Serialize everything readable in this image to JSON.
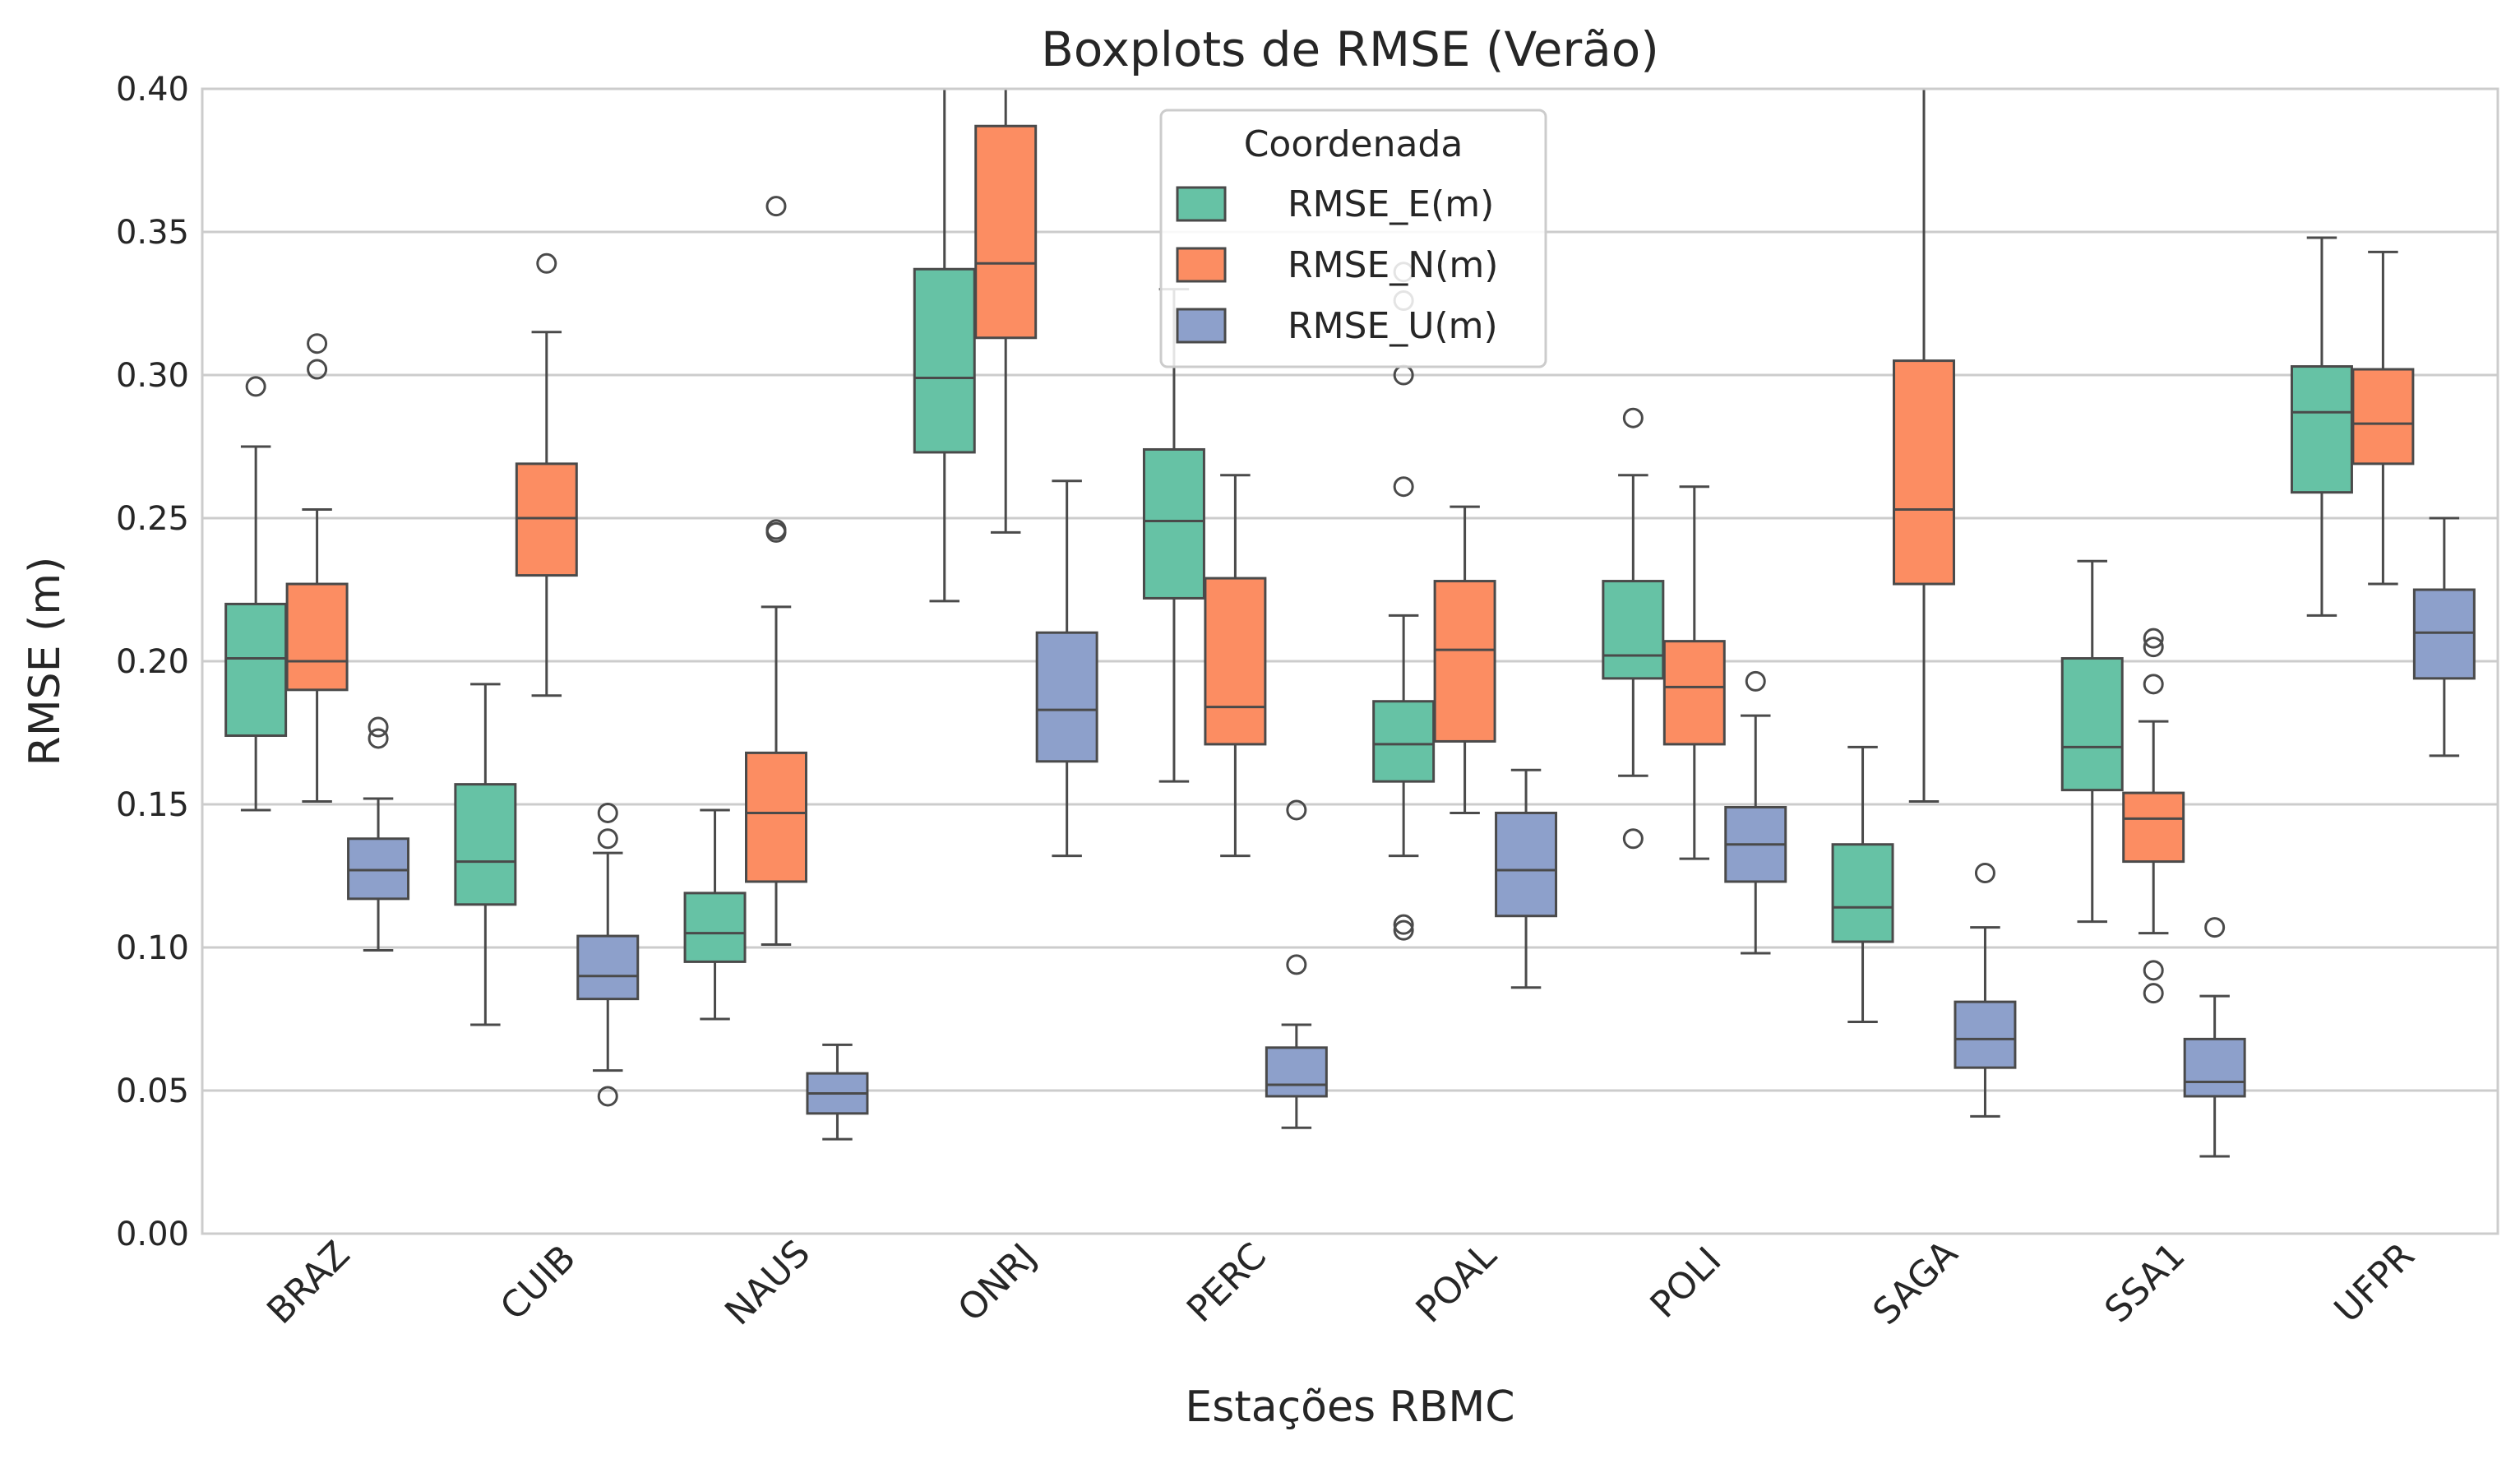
{
  "chart_data": {
    "type": "boxplot",
    "title": "Boxplots de RMSE (Verão)",
    "xlabel": "Estações RBMC",
    "ylabel": "RMSE (m)",
    "ylim": [
      0,
      0.4
    ],
    "yticks": [
      0.0,
      0.05,
      0.1,
      0.15,
      0.2,
      0.25,
      0.3,
      0.35,
      0.4
    ],
    "ytick_labels": [
      "0.00",
      "0.05",
      "0.10",
      "0.15",
      "0.20",
      "0.25",
      "0.30",
      "0.35",
      "0.40"
    ],
    "grid": true,
    "categories": [
      "BRAZ",
      "CUIB",
      "NAUS",
      "ONRJ",
      "PERC",
      "POAL",
      "POLI",
      "SAGA",
      "SSA1",
      "UFPR"
    ],
    "legend": {
      "title": "Coordenada",
      "position": "top-center"
    },
    "series": [
      {
        "name": "RMSE_E(m)",
        "color": "#66c2a5",
        "boxes": [
          {
            "whislo": 0.148,
            "q1": 0.174,
            "med": 0.201,
            "q3": 0.22,
            "whishi": 0.275,
            "fliers": [
              0.296
            ]
          },
          {
            "whislo": 0.073,
            "q1": 0.115,
            "med": 0.13,
            "q3": 0.157,
            "whishi": 0.192,
            "fliers": []
          },
          {
            "whislo": 0.075,
            "q1": 0.095,
            "med": 0.105,
            "q3": 0.119,
            "whishi": 0.148,
            "fliers": []
          },
          {
            "whislo": 0.221,
            "q1": 0.273,
            "med": 0.299,
            "q3": 0.337,
            "whishi": 0.43,
            "fliers": []
          },
          {
            "whislo": 0.158,
            "q1": 0.222,
            "med": 0.249,
            "q3": 0.274,
            "whishi": 0.33,
            "fliers": []
          },
          {
            "whislo": 0.132,
            "q1": 0.158,
            "med": 0.171,
            "q3": 0.186,
            "whishi": 0.216,
            "fliers": [
              0.106,
              0.108,
              0.261,
              0.3,
              0.326,
              0.336
            ]
          },
          {
            "whislo": 0.16,
            "q1": 0.194,
            "med": 0.202,
            "q3": 0.228,
            "whishi": 0.265,
            "fliers": [
              0.138,
              0.285
            ]
          },
          {
            "whislo": 0.074,
            "q1": 0.102,
            "med": 0.114,
            "q3": 0.136,
            "whishi": 0.17,
            "fliers": []
          },
          {
            "whislo": 0.109,
            "q1": 0.155,
            "med": 0.17,
            "q3": 0.201,
            "whishi": 0.235,
            "fliers": []
          },
          {
            "whislo": 0.216,
            "q1": 0.259,
            "med": 0.287,
            "q3": 0.303,
            "whishi": 0.348,
            "fliers": []
          }
        ]
      },
      {
        "name": "RMSE_N(m)",
        "color": "#fc8d62",
        "boxes": [
          {
            "whislo": 0.151,
            "q1": 0.19,
            "med": 0.2,
            "q3": 0.227,
            "whishi": 0.253,
            "fliers": [
              0.302,
              0.311
            ]
          },
          {
            "whislo": 0.188,
            "q1": 0.23,
            "med": 0.25,
            "q3": 0.269,
            "whishi": 0.315,
            "fliers": [
              0.339
            ]
          },
          {
            "whislo": 0.101,
            "q1": 0.123,
            "med": 0.147,
            "q3": 0.168,
            "whishi": 0.219,
            "fliers": [
              0.245,
              0.246,
              0.359
            ]
          },
          {
            "whislo": 0.245,
            "q1": 0.313,
            "med": 0.339,
            "q3": 0.387,
            "whishi": 0.43,
            "fliers": []
          },
          {
            "whislo": 0.132,
            "q1": 0.171,
            "med": 0.184,
            "q3": 0.229,
            "whishi": 0.265,
            "fliers": []
          },
          {
            "whislo": 0.147,
            "q1": 0.172,
            "med": 0.204,
            "q3": 0.228,
            "whishi": 0.254,
            "fliers": []
          },
          {
            "whislo": 0.131,
            "q1": 0.171,
            "med": 0.191,
            "q3": 0.207,
            "whishi": 0.261,
            "fliers": []
          },
          {
            "whislo": 0.151,
            "q1": 0.227,
            "med": 0.253,
            "q3": 0.305,
            "whishi": 0.43,
            "fliers": []
          },
          {
            "whislo": 0.105,
            "q1": 0.13,
            "med": 0.145,
            "q3": 0.154,
            "whishi": 0.179,
            "fliers": [
              0.084,
              0.092,
              0.192,
              0.205,
              0.208
            ]
          },
          {
            "whislo": 0.227,
            "q1": 0.269,
            "med": 0.283,
            "q3": 0.302,
            "whishi": 0.343,
            "fliers": []
          }
        ]
      },
      {
        "name": "RMSE_U(m)",
        "color": "#8da0cb",
        "boxes": [
          {
            "whislo": 0.099,
            "q1": 0.117,
            "med": 0.127,
            "q3": 0.138,
            "whishi": 0.152,
            "fliers": [
              0.173,
              0.177
            ]
          },
          {
            "whislo": 0.057,
            "q1": 0.082,
            "med": 0.09,
            "q3": 0.104,
            "whishi": 0.133,
            "fliers": [
              0.048,
              0.138,
              0.147
            ]
          },
          {
            "whislo": 0.033,
            "q1": 0.042,
            "med": 0.049,
            "q3": 0.056,
            "whishi": 0.066,
            "fliers": []
          },
          {
            "whislo": 0.132,
            "q1": 0.165,
            "med": 0.183,
            "q3": 0.21,
            "whishi": 0.263,
            "fliers": []
          },
          {
            "whislo": 0.037,
            "q1": 0.048,
            "med": 0.052,
            "q3": 0.065,
            "whishi": 0.073,
            "fliers": [
              0.094,
              0.148
            ]
          },
          {
            "whislo": 0.086,
            "q1": 0.111,
            "med": 0.127,
            "q3": 0.147,
            "whishi": 0.162,
            "fliers": []
          },
          {
            "whislo": 0.098,
            "q1": 0.123,
            "med": 0.136,
            "q3": 0.149,
            "whishi": 0.181,
            "fliers": [
              0.193
            ]
          },
          {
            "whislo": 0.041,
            "q1": 0.058,
            "med": 0.068,
            "q3": 0.081,
            "whishi": 0.107,
            "fliers": [
              0.126
            ]
          },
          {
            "whislo": 0.027,
            "q1": 0.048,
            "med": 0.053,
            "q3": 0.068,
            "whishi": 0.083,
            "fliers": [
              0.107
            ]
          },
          {
            "whislo": 0.167,
            "q1": 0.194,
            "med": 0.21,
            "q3": 0.225,
            "whishi": 0.25,
            "fliers": []
          }
        ]
      }
    ]
  }
}
